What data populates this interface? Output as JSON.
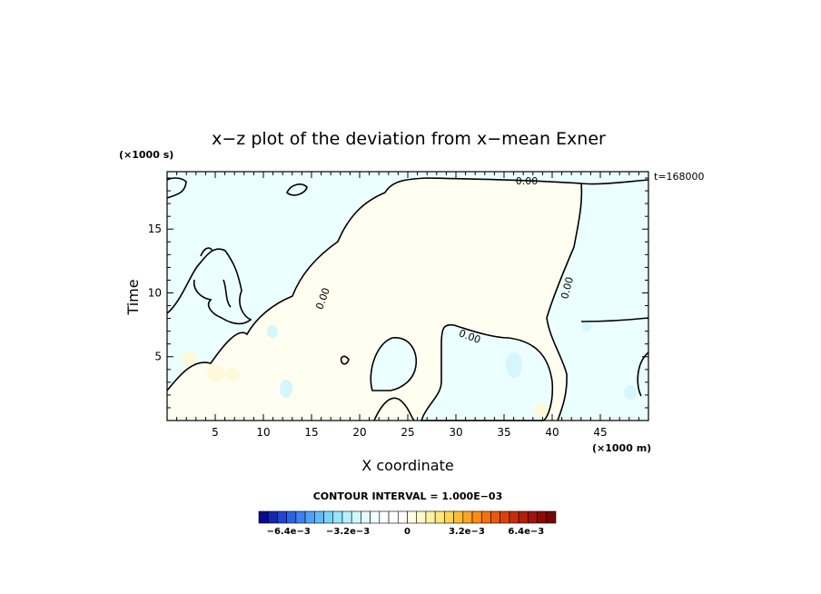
{
  "chart_data": {
    "type": "heatmap",
    "title": "x−z plot of the deviation from x−mean Exner",
    "xlabel": "X coordinate",
    "ylabel": "Time",
    "x_units": "(×1000 m)",
    "y_units": "(×1000 s)",
    "time_label": "t=168000",
    "xlim": [
      0,
      50
    ],
    "ylim": [
      0,
      19.5
    ],
    "x_ticks": [
      5,
      10,
      15,
      20,
      25,
      30,
      35,
      40,
      45
    ],
    "y_ticks": [
      5,
      10,
      15
    ],
    "contour_labels": [
      "0.00",
      "0.00",
      "0.00",
      "0.00"
    ],
    "contour_interval_text": "CONTOUR INTERVAL = 1.000E−03",
    "colorbar": {
      "range": [
        -0.008,
        0.008
      ],
      "tick_labels": [
        "−6.4e−3",
        "−3.2e−3",
        "0",
        "3.2e−3",
        "6.4e−3"
      ],
      "tick_values": [
        -0.0064,
        -0.0032,
        0,
        0.0032,
        0.0064
      ],
      "colors": [
        "#0a0a8c",
        "#1426b4",
        "#1e46d2",
        "#2864e6",
        "#3c82f0",
        "#50a0f5",
        "#64b9fa",
        "#7dd2fc",
        "#96e6fd",
        "#b4f2fe",
        "#cdf8ff",
        "#e1fcff",
        "#f0feff",
        "#fbfffe",
        "#ffffff",
        "#fffff8",
        "#fffde6",
        "#fff8c8",
        "#fff0a0",
        "#ffe678",
        "#ffd450",
        "#ffbe32",
        "#ffa51e",
        "#ff8c14",
        "#f5700f",
        "#eb5a0a",
        "#dc410a",
        "#c82d0a",
        "#b41e0a",
        "#a0140a",
        "#8c0a05",
        "#780505"
      ]
    },
    "regions": [
      {
        "sign": "negative",
        "desc": "x 0-10, t 6-19.5"
      },
      {
        "sign": "positive",
        "desc": "x 15-42, t 0-19"
      },
      {
        "sign": "negative",
        "desc": "x 38-50, t 0-19.5"
      }
    ],
    "colors": {
      "negative_fill": "#ecffff",
      "positive_fill": "#fffef0",
      "light_blue_spot": "#d4f6fc",
      "light_yellow_spot": "#fff9d8"
    }
  }
}
